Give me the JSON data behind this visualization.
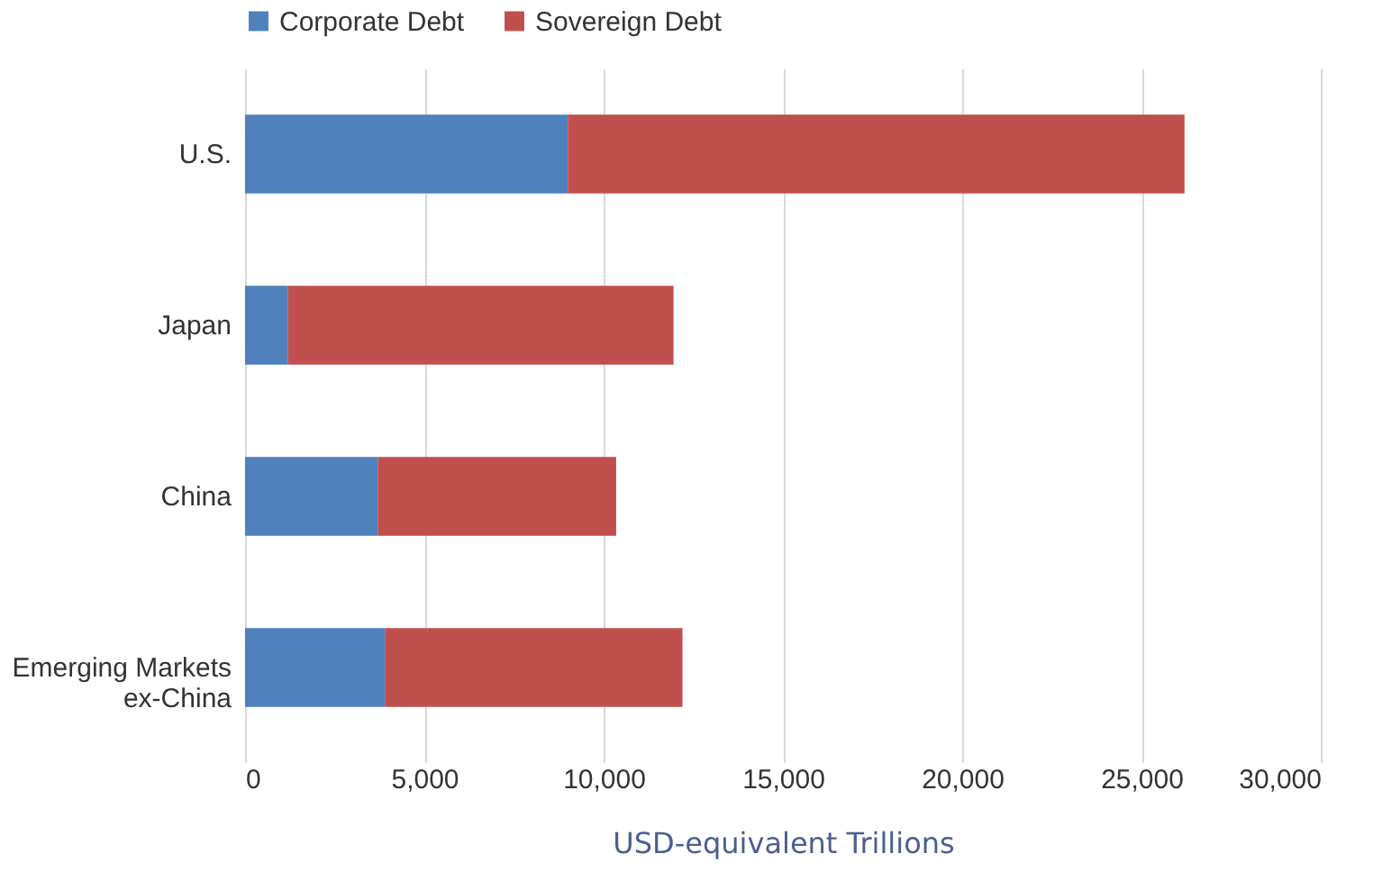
{
  "chart_data": {
    "type": "bar",
    "orientation": "horizontal",
    "stacked": true,
    "xlabel": "USD-equivalent Trillions",
    "categories": [
      "U.S.",
      "Japan",
      "China",
      "Emerging Markets ex-China"
    ],
    "series": [
      {
        "name": "Corporate Debt",
        "color": "#4f81bd",
        "values": [
          9000,
          1200,
          3700,
          3900
        ]
      },
      {
        "name": "Sovereign Debt",
        "color": "#c0504d",
        "values": [
          17200,
          10750,
          6650,
          8300
        ]
      }
    ],
    "xlim": [
      0,
      30000
    ],
    "xticks": [
      0,
      {
        "value": 5000,
        "label": "5,000"
      },
      {
        "value": 10000,
        "label": "10,000"
      },
      {
        "value": 15000,
        "label": "15,000"
      },
      {
        "value": 20000,
        "label": "20,000"
      },
      {
        "value": 25000,
        "label": "25,000"
      },
      {
        "value": 30000,
        "label": "30,000"
      }
    ],
    "grid": "x",
    "legend": "top"
  }
}
